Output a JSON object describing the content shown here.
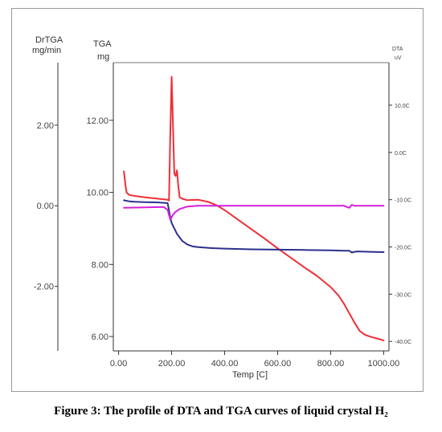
{
  "caption": "Figure 3: The profile of DTA and TGA curves of liquid crystal H₂",
  "chart_data": {
    "type": "line",
    "xlabel": "Temp [C]",
    "x_ticks": [
      "0.00",
      "200.00",
      "400.00",
      "600.00",
      "800.00",
      "1000.00"
    ],
    "xlim": [
      -20,
      1020
    ],
    "axes": {
      "drtga": {
        "title_line1": "DrTGA",
        "title_line2": "mg/min",
        "ticks": [
          "2.00",
          "0.00",
          "-2.00"
        ],
        "tick_values": [
          2,
          0,
          -2
        ],
        "ylim": [
          -3.6,
          3.55
        ]
      },
      "tga": {
        "title_line1": "TGA",
        "title_line2": "mg",
        "ticks": [
          "12.00",
          "10.00",
          "8.00",
          "6.00"
        ],
        "tick_values": [
          12,
          10,
          8,
          6
        ],
        "ylim": [
          5.6,
          13.6
        ]
      },
      "dta": {
        "title_line1": "DTA",
        "title_line2": "uV",
        "ticks": [
          "10.0C",
          "0.0C",
          "-10.0C",
          "-20.0C",
          "-30.0C",
          "-40.0C"
        ],
        "tick_values": [
          10,
          0,
          -10,
          -20,
          -30,
          -40
        ],
        "ylim": [
          -42,
          19
        ]
      }
    },
    "series": [
      {
        "axis": "dta",
        "color": "#ee2f37",
        "x": [
          20,
          25,
          30,
          40,
          60,
          100,
          150,
          185,
          190,
          195,
          200,
          205,
          210,
          215,
          220,
          225,
          230,
          240,
          260,
          300,
          340,
          370,
          400,
          450,
          500,
          550,
          600,
          650,
          700,
          750,
          800,
          830,
          850,
          870,
          890,
          910,
          930,
          950,
          970,
          990,
          1000
        ],
        "values": [
          -4.0,
          -6.5,
          -8.5,
          -9.0,
          -9.2,
          -9.5,
          -9.8,
          -10.0,
          -10.2,
          4.0,
          16.0,
          6.0,
          -4.5,
          -5.0,
          -3.8,
          -7.0,
          -9.5,
          -9.8,
          -10.1,
          -10.0,
          -10.5,
          -11.2,
          -12.2,
          -14.2,
          -16.2,
          -18.2,
          -20.3,
          -22.3,
          -24.3,
          -26.2,
          -28.5,
          -30.3,
          -32.0,
          -34.0,
          -36.0,
          -37.8,
          -38.6,
          -39.0,
          -39.3,
          -39.6,
          -39.8
        ]
      },
      {
        "axis": "tga",
        "color": "#2d2f8e",
        "x": [
          20,
          40,
          60,
          100,
          150,
          185,
          190,
          195,
          200,
          210,
          220,
          230,
          240,
          260,
          280,
          300,
          320,
          340,
          360,
          400,
          500,
          600,
          700,
          800,
          850,
          870,
          880,
          890,
          900,
          950,
          1000
        ],
        "values": [
          9.78,
          9.75,
          9.74,
          9.73,
          9.72,
          9.7,
          9.5,
          9.3,
          9.15,
          9.0,
          8.85,
          8.75,
          8.65,
          8.55,
          8.5,
          8.48,
          8.47,
          8.46,
          8.45,
          8.44,
          8.42,
          8.41,
          8.4,
          8.39,
          8.38,
          8.38,
          8.33,
          8.35,
          8.36,
          8.35,
          8.34
        ]
      },
      {
        "axis": "drtga",
        "color": "#d420d8",
        "x": [
          20,
          100,
          170,
          185,
          195,
          205,
          215,
          230,
          260,
          300,
          400,
          500,
          600,
          700,
          800,
          850,
          870,
          880,
          890,
          900,
          1000
        ],
        "values": [
          -0.05,
          -0.04,
          -0.03,
          -0.1,
          -0.35,
          -0.22,
          -0.15,
          -0.08,
          -0.02,
          0.0,
          0.0,
          0.0,
          0.0,
          0.0,
          0.0,
          0.0,
          -0.05,
          0.02,
          0.0,
          0.0,
          0.0
        ]
      }
    ]
  }
}
